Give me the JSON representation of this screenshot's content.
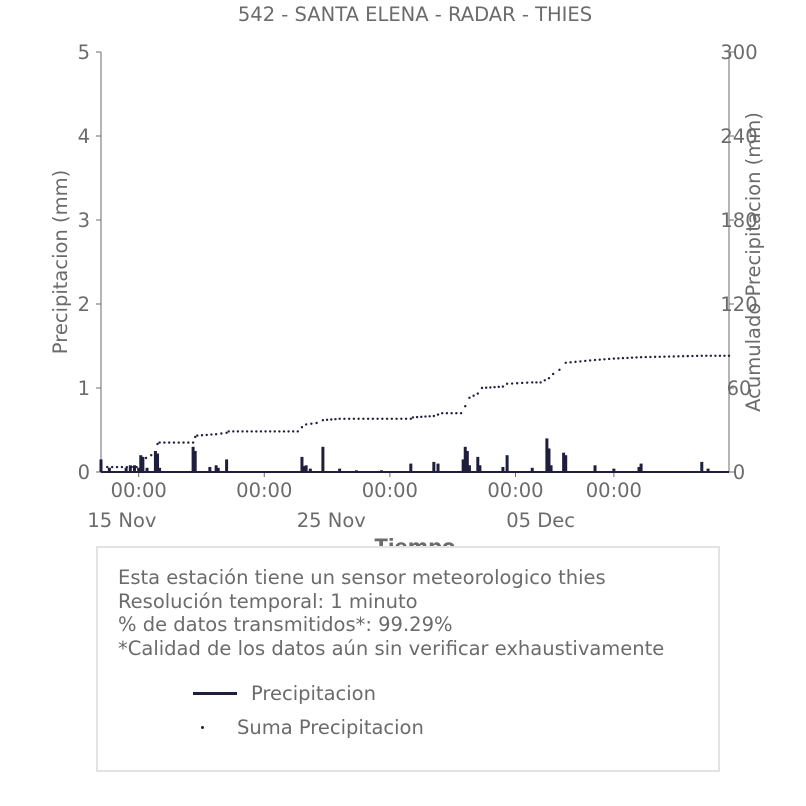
{
  "chart_data": {
    "type": "bar+line",
    "title": "542 - SANTA ELENA - RADAR - THIES",
    "xlabel": "Tiempo",
    "ylabel": "Precipitacion (mm)",
    "y2label": "Acumulado Precipitacion (mm)",
    "ylim": [
      0,
      5
    ],
    "y2lim": [
      0,
      300
    ],
    "yticks": [
      "0",
      "1",
      "2",
      "3",
      "4",
      "5"
    ],
    "y2ticks": [
      "0",
      "60",
      "120",
      "180",
      "240",
      "300"
    ],
    "x_range_days": [
      -1,
      29
    ],
    "xticks": [
      {
        "day": 0.8,
        "label": "00:00"
      },
      {
        "day": 6.8,
        "label": "00:00"
      },
      {
        "day": 12.8,
        "label": "00:00"
      },
      {
        "day": 18.8,
        "label": "00:00"
      },
      {
        "day": 23.5,
        "label": "00:00"
      }
    ],
    "date_labels": [
      {
        "day": 0,
        "label": "15 Nov"
      },
      {
        "day": 10,
        "label": "25 Nov"
      },
      {
        "day": 20,
        "label": "05 Dec"
      }
    ],
    "series": [
      {
        "name": "Precipitacion",
        "style": "bars",
        "color": "#1f1f3d",
        "points": [
          [
            -1.0,
            0.15
          ],
          [
            -0.6,
            0.05
          ],
          [
            0.2,
            0.05
          ],
          [
            0.4,
            0.08
          ],
          [
            0.6,
            0.08
          ],
          [
            0.8,
            0.05
          ],
          [
            0.9,
            0.2
          ],
          [
            1.0,
            0.18
          ],
          [
            1.2,
            0.05
          ],
          [
            1.6,
            0.25
          ],
          [
            1.7,
            0.22
          ],
          [
            1.8,
            0.05
          ],
          [
            3.4,
            0.3
          ],
          [
            3.5,
            0.25
          ],
          [
            4.2,
            0.06
          ],
          [
            4.5,
            0.08
          ],
          [
            4.6,
            0.05
          ],
          [
            5.0,
            0.15
          ],
          [
            8.6,
            0.18
          ],
          [
            8.7,
            0.07
          ],
          [
            8.8,
            0.08
          ],
          [
            9.0,
            0.04
          ],
          [
            9.6,
            0.3
          ],
          [
            10.4,
            0.04
          ],
          [
            11.2,
            0.02
          ],
          [
            12.4,
            0.02
          ],
          [
            13.8,
            0.1
          ],
          [
            14.9,
            0.12
          ],
          [
            15.1,
            0.1
          ],
          [
            16.3,
            0.15
          ],
          [
            16.4,
            0.3
          ],
          [
            16.5,
            0.25
          ],
          [
            16.6,
            0.08
          ],
          [
            17.0,
            0.18
          ],
          [
            17.1,
            0.08
          ],
          [
            18.2,
            0.06
          ],
          [
            18.4,
            0.2
          ],
          [
            19.6,
            0.05
          ],
          [
            20.3,
            0.4
          ],
          [
            20.4,
            0.28
          ],
          [
            20.5,
            0.08
          ],
          [
            21.1,
            0.23
          ],
          [
            21.2,
            0.2
          ],
          [
            22.6,
            0.08
          ],
          [
            23.5,
            0.04
          ],
          [
            24.7,
            0.06
          ],
          [
            24.8,
            0.1
          ],
          [
            27.7,
            0.12
          ],
          [
            28.0,
            0.04
          ]
        ]
      },
      {
        "name": "Suma Precipicacion",
        "style": "dotted",
        "color": "#1f1f3d",
        "points": [
          [
            -1.0,
            0.5
          ],
          [
            -0.7,
            3.5
          ],
          [
            0.7,
            3.5
          ],
          [
            0.9,
            8
          ],
          [
            1.4,
            12
          ],
          [
            1.7,
            20
          ],
          [
            1.8,
            21
          ],
          [
            3.4,
            21
          ],
          [
            3.5,
            25
          ],
          [
            3.6,
            26
          ],
          [
            4.5,
            27
          ],
          [
            5.0,
            28
          ],
          [
            5.1,
            29
          ],
          [
            8.4,
            29
          ],
          [
            8.6,
            32
          ],
          [
            8.8,
            34
          ],
          [
            9.3,
            35
          ],
          [
            9.6,
            37
          ],
          [
            10.4,
            38
          ],
          [
            13.8,
            38
          ],
          [
            13.9,
            39
          ],
          [
            14.9,
            40
          ],
          [
            15.3,
            42
          ],
          [
            16.2,
            42
          ],
          [
            16.4,
            47
          ],
          [
            16.6,
            53
          ],
          [
            17.0,
            56
          ],
          [
            17.2,
            60
          ],
          [
            18.2,
            61
          ],
          [
            18.4,
            63
          ],
          [
            19.6,
            64
          ],
          [
            20.0,
            64
          ],
          [
            20.4,
            67
          ],
          [
            20.6,
            70
          ],
          [
            20.9,
            73
          ],
          [
            21.2,
            78
          ],
          [
            22.6,
            80
          ],
          [
            23.5,
            81
          ],
          [
            24.8,
            82
          ],
          [
            27.7,
            83
          ],
          [
            29.0,
            83
          ]
        ]
      }
    ],
    "legend": [
      "Precipitacion",
      "Suma Precipitacion"
    ]
  },
  "info": {
    "line1": "Esta estación tiene un sensor meteorologico thies",
    "line2": "Resolución temporal: 1 minuto",
    "line3": "% de datos transmitidos*: 99.29%",
    "line4": "*Calidad de los datos aún sin verificar exhaustivamente"
  },
  "legend": {
    "precip_label": "Precipitacion",
    "sum_label": "Suma Precipitacion"
  }
}
